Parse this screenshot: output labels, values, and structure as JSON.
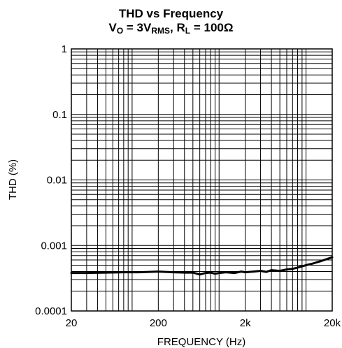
{
  "chart_data": {
    "type": "line",
    "title": "THD vs Frequency",
    "subtitle": {
      "v_main": "V",
      "v_sub": "O",
      "v_rest": " = 3V",
      "rms_sub": "RMS",
      "sep": ", ",
      "r_main": "R",
      "r_sub": "L",
      "r_rest": " = 100Ω"
    },
    "xlabel": "FREQUENCY (Hz)",
    "ylabel": "THD (%)",
    "x_scale": "log",
    "y_scale": "log",
    "xlim": [
      20,
      20000
    ],
    "ylim": [
      0.0001,
      1
    ],
    "grid": true,
    "x_ticks": [
      {
        "value": 20,
        "label": "20"
      },
      {
        "value": 200,
        "label": "200"
      },
      {
        "value": 2000,
        "label": "2k"
      },
      {
        "value": 20000,
        "label": "20k"
      }
    ],
    "y_ticks": [
      {
        "value": 1,
        "label": "1"
      },
      {
        "value": 0.1,
        "label": "0.1"
      },
      {
        "value": 0.01,
        "label": "0.01"
      },
      {
        "value": 0.001,
        "label": "0.001"
      },
      {
        "value": 0.0001,
        "label": "0.0001"
      }
    ],
    "series": [
      {
        "color": "#000000",
        "points": [
          [
            20,
            0.00038
          ],
          [
            30,
            0.00038
          ],
          [
            50,
            0.000385
          ],
          [
            80,
            0.00039
          ],
          [
            120,
            0.00039
          ],
          [
            200,
            0.0004
          ],
          [
            300,
            0.00039
          ],
          [
            400,
            0.000385
          ],
          [
            500,
            0.000385
          ],
          [
            600,
            0.00036
          ],
          [
            700,
            0.00038
          ],
          [
            800,
            0.000385
          ],
          [
            900,
            0.00037
          ],
          [
            1000,
            0.00038
          ],
          [
            1200,
            0.00039
          ],
          [
            1500,
            0.00038
          ],
          [
            1800,
            0.0004
          ],
          [
            2000,
            0.00039
          ],
          [
            2500,
            0.0004
          ],
          [
            3000,
            0.00041
          ],
          [
            3500,
            0.000395
          ],
          [
            4000,
            0.00042
          ],
          [
            5000,
            0.00041
          ],
          [
            6000,
            0.00043
          ],
          [
            7000,
            0.00044
          ],
          [
            8000,
            0.00046
          ],
          [
            10000,
            0.0005
          ],
          [
            12000,
            0.00053
          ],
          [
            15000,
            0.00058
          ],
          [
            18000,
            0.00063
          ],
          [
            20000,
            0.00066
          ]
        ]
      }
    ]
  }
}
